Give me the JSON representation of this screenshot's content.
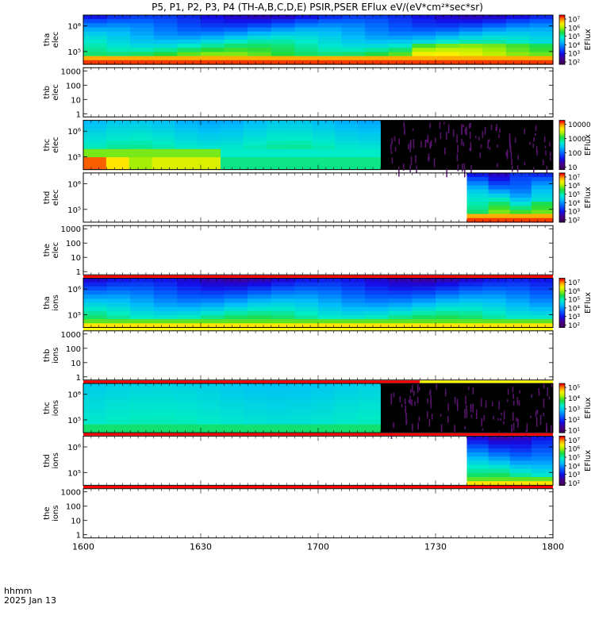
{
  "title": "P5, P1, P2, P3, P4 (TH-A,B,C,D,E) PSIR,PSER EFlux eV/(eV*cm²*sec*sr)",
  "footer": {
    "time_label": "hhmm",
    "date_label": "2025 Jan 13"
  },
  "colorbar_label": "EFlux",
  "colors": {
    "flag_red": "#ff0000",
    "flag_yellow": "#ffff00",
    "background": "#ffffff",
    "no_data_black": "#000000"
  },
  "chart_data": {
    "type": "heatmap",
    "x": {
      "ticks": [
        "1600",
        "1630",
        "1700",
        "1730",
        "1800"
      ],
      "range_minutes": [
        0,
        120
      ]
    },
    "panels": [
      {
        "id": "tha-elec",
        "ylabel": [
          "tha",
          "elec"
        ],
        "log": true,
        "yticks": [
          "10⁶",
          "10⁵"
        ],
        "cbar": [
          "10⁷",
          "10⁶",
          "10⁵",
          "10⁴",
          "10³",
          "10²"
        ],
        "spectrogram": {
          "start_min": 0,
          "end_min": 120,
          "nx": 20,
          "profile": "elec_a"
        }
      },
      {
        "id": "thb-elec",
        "ylabel": [
          "thb",
          "elec"
        ],
        "log": true,
        "yticks": [
          "1000",
          "100",
          "10",
          "1"
        ],
        "cbar": null,
        "spectrogram": null
      },
      {
        "id": "thc-elec",
        "ylabel": [
          "thc",
          "elec"
        ],
        "log": true,
        "yticks": [
          "10⁶",
          "10⁵"
        ],
        "cbar": [
          "10000",
          "1000",
          "100",
          "10"
        ],
        "spectrogram": {
          "start_min": 0,
          "end_min": 76,
          "nx": 13,
          "profile": "elec_c",
          "dropout_start_min": 76
        }
      },
      {
        "id": "thd-elec",
        "ylabel": [
          "thd",
          "elec"
        ],
        "log": true,
        "yticks": [
          "10⁶",
          "10⁵"
        ],
        "cbar": [
          "10⁷",
          "10⁶",
          "10⁵",
          "10⁴",
          "10³",
          "10²"
        ],
        "spectrogram": {
          "start_min": 98,
          "end_min": 120,
          "nx": 4,
          "profile": "elec_a"
        }
      },
      {
        "id": "the-elec",
        "ylabel": [
          "the",
          "elec"
        ],
        "log": true,
        "yticks": [
          "1000",
          "100",
          "10",
          "1"
        ],
        "cbar": null,
        "spectrogram": null,
        "flag_below": "red"
      },
      {
        "id": "tha-ions",
        "ylabel": [
          "tha",
          "ions"
        ],
        "log": true,
        "yticks": [
          "10⁶",
          "10⁵"
        ],
        "cbar": [
          "10⁷",
          "10⁶",
          "10⁵",
          "10⁴",
          "10³",
          "10²"
        ],
        "spectrogram": {
          "start_min": 0,
          "end_min": 120,
          "nx": 20,
          "profile": "ions_a"
        },
        "flag_below": "yellow"
      },
      {
        "id": "thb-ions",
        "ylabel": [
          "thb",
          "ions"
        ],
        "log": true,
        "yticks": [
          "1000",
          "100",
          "10",
          "1"
        ],
        "cbar": null,
        "spectrogram": null,
        "flag_below": "red_yellow",
        "flag_switch_min": 86
      },
      {
        "id": "thc-ions",
        "ylabel": [
          "thc",
          "ions"
        ],
        "log": true,
        "yticks": [
          "10⁶",
          "10⁵"
        ],
        "cbar": [
          "10⁵",
          "10⁴",
          "10³",
          "10²",
          "10¹"
        ],
        "spectrogram": {
          "start_min": 0,
          "end_min": 76,
          "nx": 13,
          "profile": "ions_c",
          "dropout_start_min": 76
        },
        "flag_below": "red"
      },
      {
        "id": "thd-ions",
        "ylabel": [
          "thd",
          "ions"
        ],
        "log": true,
        "yticks": [
          "10⁶",
          "10⁵"
        ],
        "cbar": [
          "10⁷",
          "10⁶",
          "10⁵",
          "10⁴",
          "10³",
          "10²"
        ],
        "spectrogram": {
          "start_min": 98,
          "end_min": 120,
          "nx": 4,
          "profile": "ions_a"
        },
        "flag_below": "red"
      },
      {
        "id": "the-ions",
        "ylabel": [
          "the",
          "ions"
        ],
        "log": true,
        "yticks": [
          "1000",
          "100",
          "10",
          "1"
        ],
        "cbar": null,
        "spectrogram": null
      }
    ]
  }
}
